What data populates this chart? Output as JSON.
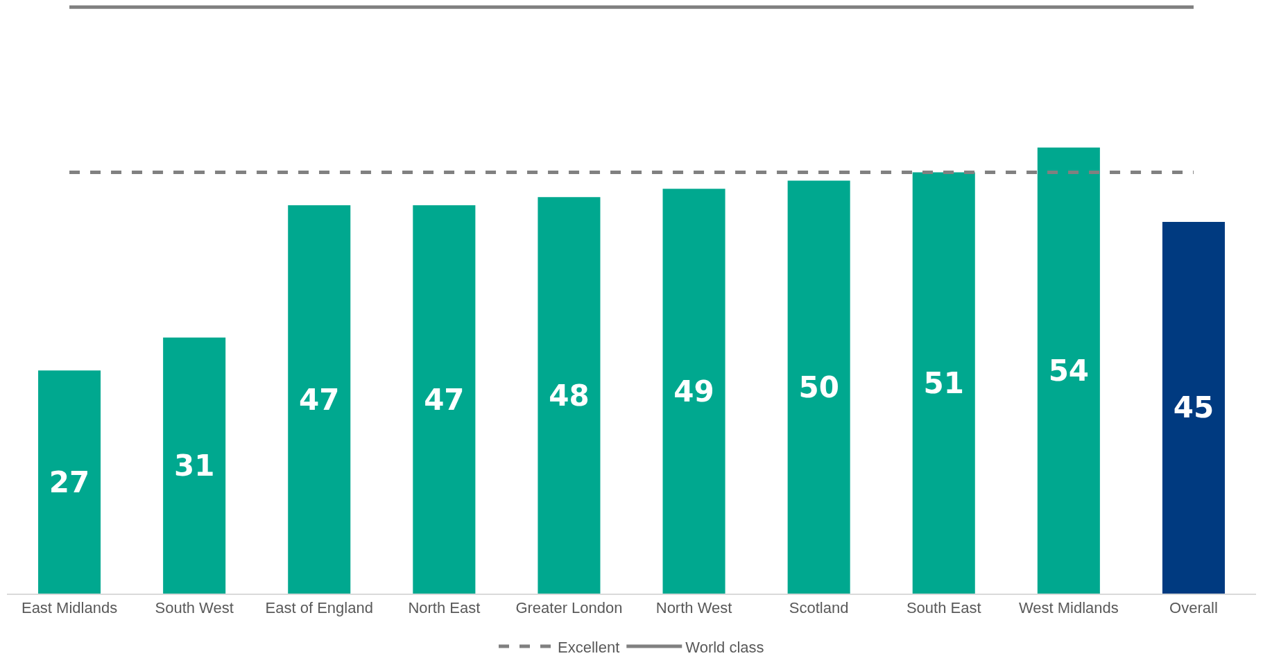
{
  "chart_data": {
    "type": "bar",
    "categories": [
      "East Midlands",
      "South West",
      "East of England",
      "North East",
      "Greater London",
      "North West",
      "Scotland",
      "South East",
      "West Midlands",
      "Overall"
    ],
    "values": [
      27,
      31,
      47,
      47,
      48,
      49,
      50,
      51,
      54,
      45
    ],
    "colors": [
      "#00a88f",
      "#00a88f",
      "#00a88f",
      "#00a88f",
      "#00a88f",
      "#00a88f",
      "#00a88f",
      "#00a88f",
      "#00a88f",
      "#003a80"
    ],
    "data_labels": true,
    "ref_lines": [
      {
        "axis": "y",
        "value": 51,
        "label": "Excellent",
        "color": "#808080",
        "line_style": "dashed"
      },
      {
        "axis": "y",
        "value": 71,
        "label": "World class",
        "color": "#808080",
        "line_style": "solid"
      }
    ],
    "legend": "bottom",
    "grid": false
  }
}
